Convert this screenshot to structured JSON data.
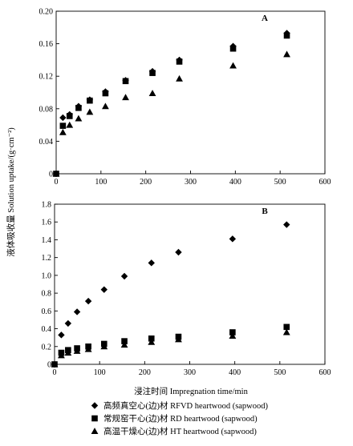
{
  "figure": {
    "ylabel": "液体吸收量 Solution uptake/(g·cm⁻²)",
    "xlabel": "浸注时间 Impregnation time/min",
    "colors": {
      "markers": "#000000",
      "axes": "#000000",
      "background": "#ffffff"
    }
  },
  "legend": {
    "items": [
      {
        "label": "高频真空心(边)材 RFVD heartwood (sapwood)",
        "marker": "diamond"
      },
      {
        "label": "常规窑干心(边)材 RD heartwood (sapwood)",
        "marker": "square"
      },
      {
        "label": "高温干燥心(边)材 HT heartwood (sapwood)",
        "marker": "triangle"
      }
    ]
  },
  "chart_data": [
    {
      "type": "scatter",
      "panel_label": "A",
      "xlim": [
        0,
        600
      ],
      "ylim": [
        0,
        0.2
      ],
      "x_ticks": [
        0,
        100,
        200,
        300,
        400,
        500,
        600
      ],
      "y_ticks": [
        0,
        0.04,
        0.08,
        0.12,
        0.16,
        0.2
      ],
      "y_tick_labels": [
        "0",
        "0.04",
        "0.08",
        "0.12",
        "0.16",
        "0.20"
      ],
      "grid": false,
      "series": [
        {
          "marker": "diamond",
          "x": [
            0,
            15,
            30,
            50,
            75,
            110,
            155,
            215,
            275,
            395,
            515
          ],
          "y": [
            0,
            0.069,
            0.073,
            0.083,
            0.091,
            0.101,
            0.115,
            0.126,
            0.14,
            0.157,
            0.173
          ]
        },
        {
          "marker": "square",
          "x": [
            0,
            15,
            30,
            50,
            75,
            110,
            155,
            215,
            275,
            395,
            515
          ],
          "y": [
            0,
            0.059,
            0.071,
            0.081,
            0.09,
            0.099,
            0.114,
            0.124,
            0.138,
            0.154,
            0.17
          ]
        },
        {
          "marker": "triangle",
          "x": [
            0,
            15,
            30,
            50,
            75,
            110,
            155,
            215,
            275,
            395,
            515
          ],
          "y": [
            0,
            0.051,
            0.06,
            0.068,
            0.076,
            0.083,
            0.094,
            0.099,
            0.117,
            0.133,
            0.147
          ]
        }
      ]
    },
    {
      "type": "scatter",
      "panel_label": "B",
      "xlim": [
        0,
        600
      ],
      "ylim": [
        0,
        1.8
      ],
      "x_ticks": [
        0,
        100,
        200,
        300,
        400,
        500,
        600
      ],
      "y_ticks": [
        0,
        0.2,
        0.4,
        0.6,
        0.8,
        1.0,
        1.2,
        1.4,
        1.6,
        1.8
      ],
      "y_tick_labels": [
        "0",
        "0.2",
        "0.4",
        "0.6",
        "0.8",
        "1.0",
        "1.2",
        "1.4",
        "1.6",
        "1.8"
      ],
      "grid": false,
      "series": [
        {
          "marker": "diamond",
          "x": [
            0,
            15,
            30,
            50,
            75,
            110,
            155,
            215,
            275,
            395,
            515
          ],
          "y": [
            0,
            0.33,
            0.46,
            0.59,
            0.71,
            0.84,
            0.99,
            1.14,
            1.26,
            1.41,
            1.57
          ]
        },
        {
          "marker": "square",
          "x": [
            0,
            15,
            30,
            50,
            75,
            110,
            155,
            215,
            275,
            395,
            515
          ],
          "y": [
            0,
            0.13,
            0.16,
            0.18,
            0.2,
            0.23,
            0.26,
            0.29,
            0.31,
            0.36,
            0.42
          ]
        },
        {
          "marker": "triangle",
          "x": [
            0,
            15,
            30,
            50,
            75,
            110,
            155,
            215,
            275,
            395,
            515
          ],
          "y": [
            0,
            0.1,
            0.13,
            0.15,
            0.17,
            0.2,
            0.22,
            0.25,
            0.28,
            0.32,
            0.36
          ]
        }
      ]
    }
  ]
}
